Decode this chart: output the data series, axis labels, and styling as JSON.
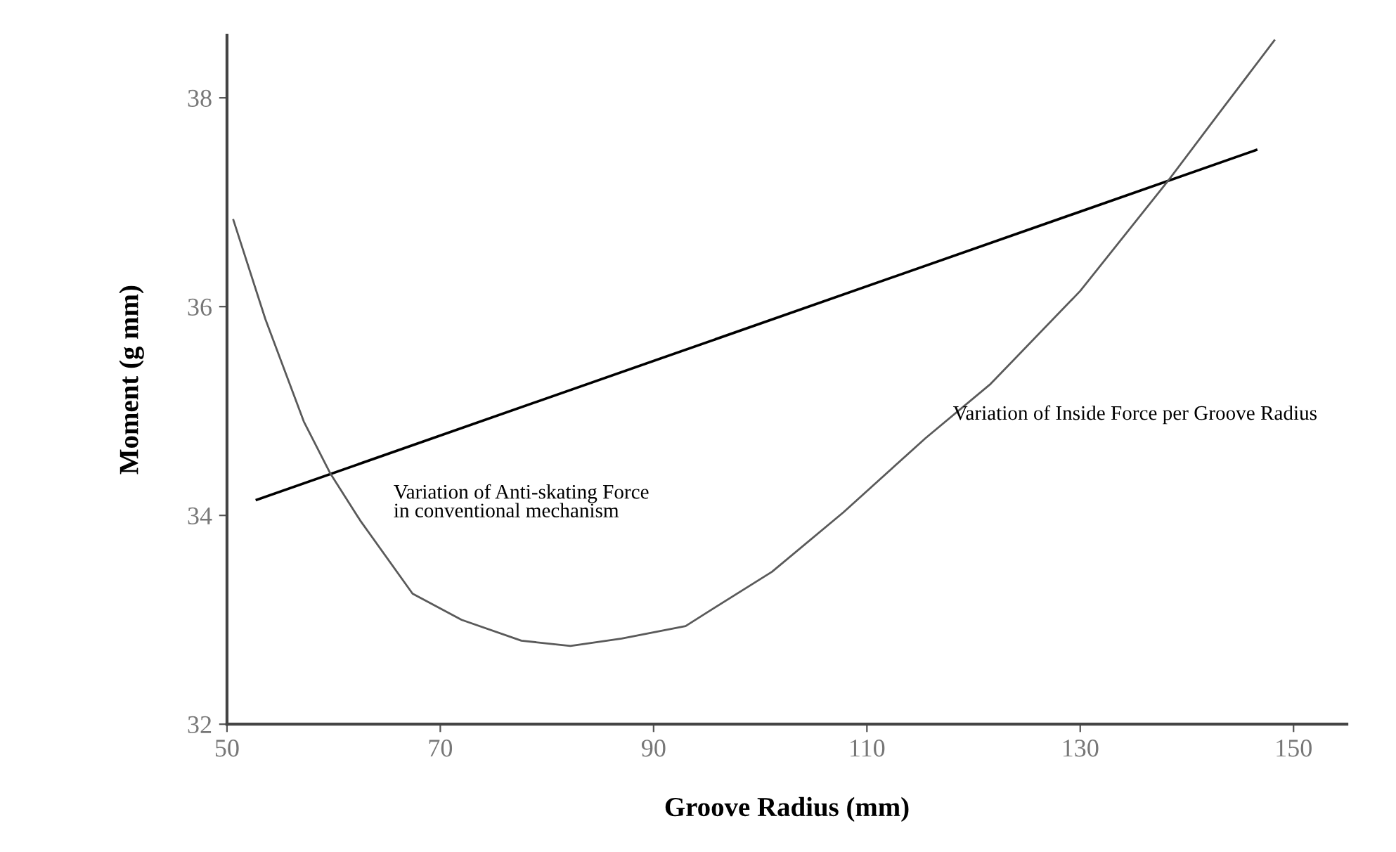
{
  "chart_data": {
    "type": "line",
    "xlabel": "Groove Radius (mm)",
    "ylabel": "Moment (g mm)",
    "xlim": [
      50,
      155
    ],
    "ylim": [
      32,
      38.6
    ],
    "xticks": [
      50,
      70,
      90,
      110,
      130,
      150
    ],
    "yticks": [
      32,
      34,
      36,
      38
    ],
    "grid": false,
    "legend": false,
    "marker": "none",
    "line_style": "solid",
    "series": [
      {
        "name": "Variation of Anti-skating Force\nin conventional mechanism",
        "color": "#000000",
        "x": [
          52.8,
          146.5
        ],
        "values": [
          34.15,
          37.5
        ]
      },
      {
        "name": "Variation of Inside Force per Groove Radius",
        "color": "#5a5a5a",
        "x": [
          50.6,
          53.6,
          57.2,
          59.7,
          62.5,
          67.4,
          72.0,
          77.6,
          82.2,
          87.0,
          93.0,
          95.0,
          101.1,
          107.8,
          115.5,
          121.6,
          130.0,
          138.2,
          143.0,
          148.2
        ],
        "values": [
          36.83,
          35.88,
          34.9,
          34.4,
          33.95,
          33.25,
          33.0,
          32.8,
          32.75,
          32.82,
          32.94,
          33.07,
          33.46,
          34.03,
          34.74,
          35.26,
          36.15,
          37.2,
          37.85,
          38.55
        ]
      }
    ]
  }
}
